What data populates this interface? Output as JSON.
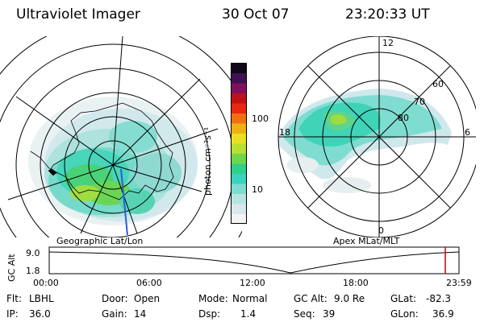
{
  "header": {
    "instrument": "Ultraviolet Imager",
    "date": "30 Oct 07",
    "time": "23:20:33 UT"
  },
  "colorbar": {
    "unit_label": "photon cm⁻²s⁻¹",
    "ticks": [
      "100",
      "10"
    ],
    "colors": [
      "#f4f4f4",
      "#d8e8ec",
      "#b8e4e0",
      "#7fdcd0",
      "#38d4c0",
      "#2fd08a",
      "#6ed84a",
      "#b8e030",
      "#e8e020",
      "#f0b010",
      "#f07010",
      "#e82810",
      "#c01018",
      "#801060",
      "#401050",
      "#100818"
    ]
  },
  "geo_map": {
    "caption": "Geographic Lat/Lon"
  },
  "polar_map": {
    "caption": "Apex MLat/MLT",
    "lat_labels": [
      "80",
      "70",
      "60"
    ],
    "mlt_labels": [
      "12",
      "6",
      "0",
      "18"
    ]
  },
  "altitude_plot": {
    "y_axis_label": "GC Alt",
    "y_ticks": [
      "9.0",
      "1.8"
    ],
    "x_ticks": [
      "00:00",
      "06:00",
      "12:00",
      "18:00",
      "23:59"
    ],
    "marker_color": "#cc0000"
  },
  "status": {
    "filter_label": "Flt:",
    "filter_value": "LBHL",
    "door_label": "Door:",
    "door_value": "Open",
    "mode_label": "Mode:",
    "mode_value": "Normal",
    "gcalt_label": "GC Alt:",
    "gcalt_value": "9.0 Re",
    "glat_label": "GLat:",
    "glat_value": "-82.3",
    "ip_label": "IP:",
    "ip_value": "36.0",
    "gain_label": "Gain:",
    "gain_value": "14",
    "dsp_label": "Dsp:",
    "dsp_value": "1.4",
    "seq_label": "Seq:",
    "seq_value": "39",
    "glon_label": "GLon:",
    "glon_value": "36.9"
  }
}
